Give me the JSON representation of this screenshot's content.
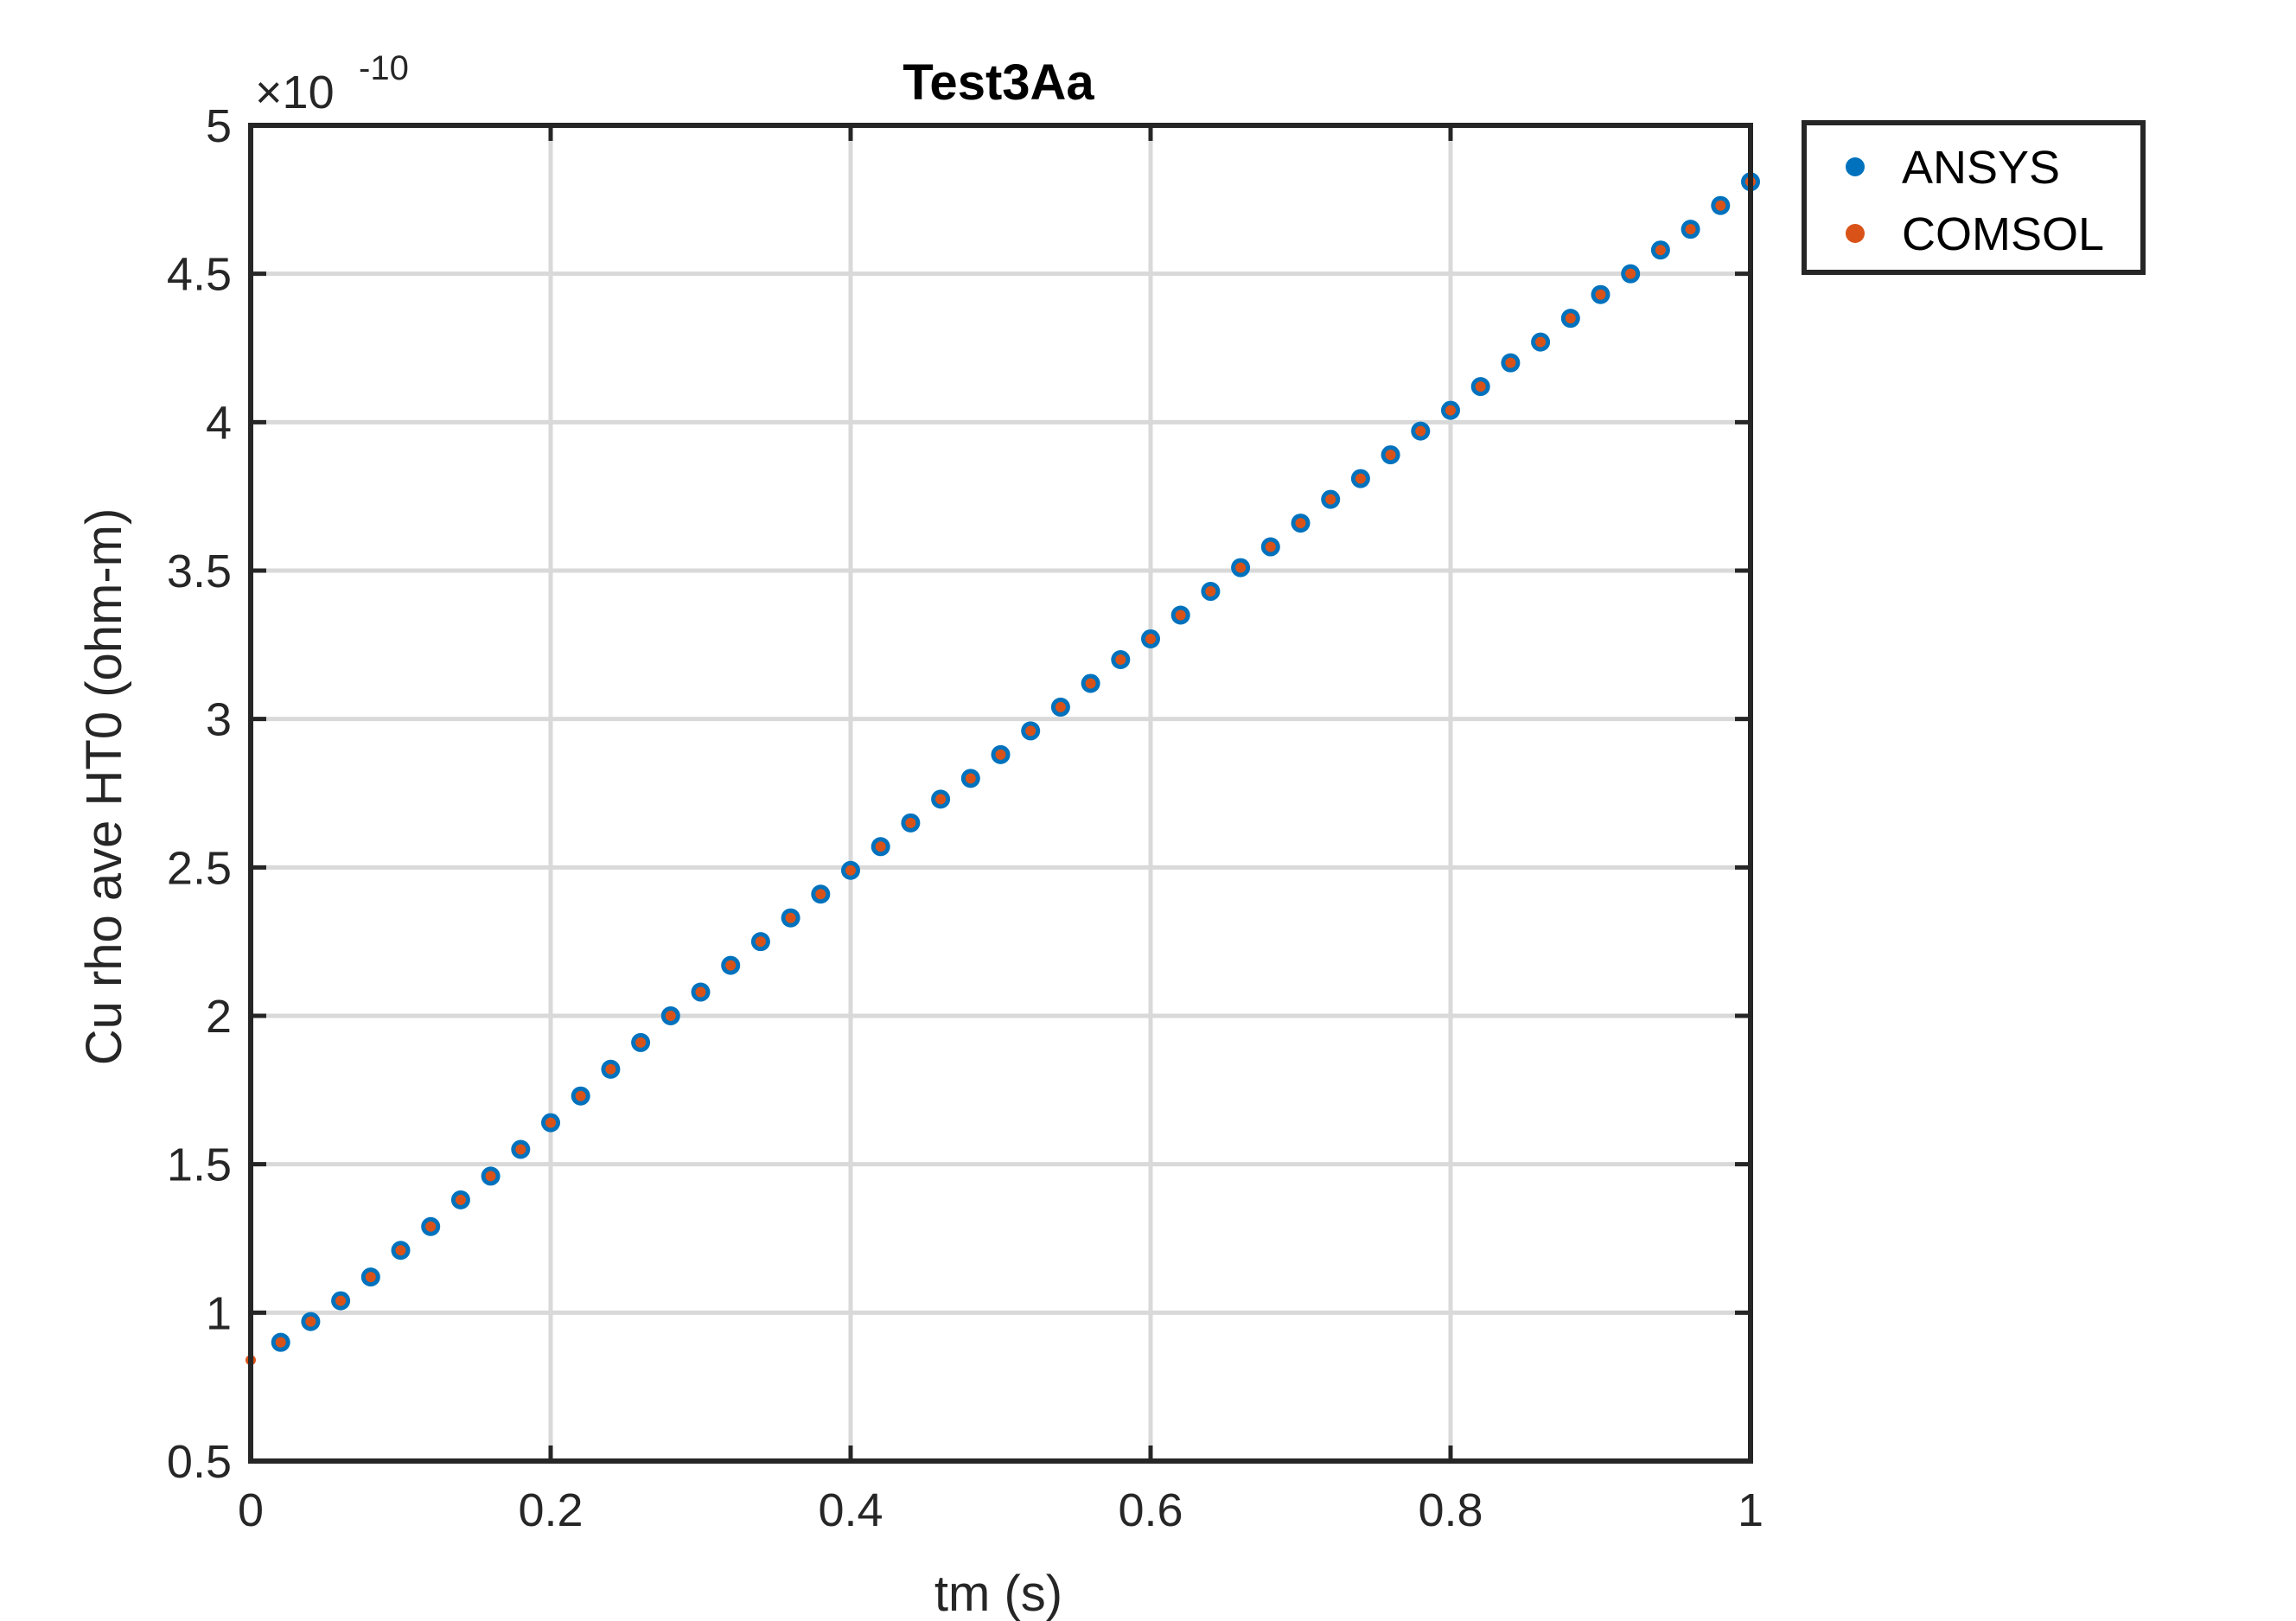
{
  "chart_data": {
    "type": "scatter",
    "title": "Test3Aa",
    "xlabel": "tm (s)",
    "ylabel": "Cu rho ave HT0 (ohm-m)",
    "y_exponent_base": "×10",
    "y_exponent_power": "-10",
    "xlim": [
      0,
      1
    ],
    "ylim": [
      0.5,
      5
    ],
    "xticks": [
      0,
      0.2,
      0.4,
      0.6,
      0.8,
      1
    ],
    "xtick_labels": [
      "0",
      "0.2",
      "0.4",
      "0.6",
      "0.8",
      "1"
    ],
    "yticks": [
      0.5,
      1,
      1.5,
      2,
      2.5,
      3,
      3.5,
      4,
      4.5,
      5
    ],
    "ytick_labels": [
      "0.5",
      "1",
      "1.5",
      "2",
      "2.5",
      "3",
      "3.5",
      "4",
      "4.5",
      "5"
    ],
    "grid": true,
    "legend_position": "outside-top-right",
    "series": [
      {
        "name": "ANSYS",
        "color": "#0072BD",
        "x": [
          0.02,
          0.04,
          0.06,
          0.08,
          0.1,
          0.12,
          0.14,
          0.16,
          0.18,
          0.2,
          0.22,
          0.24,
          0.26,
          0.28,
          0.3,
          0.32,
          0.34,
          0.36,
          0.38,
          0.4,
          0.42,
          0.44,
          0.46,
          0.48,
          0.5,
          0.52,
          0.54,
          0.56,
          0.58,
          0.6,
          0.62,
          0.64,
          0.66,
          0.68,
          0.7,
          0.72,
          0.74,
          0.76,
          0.78,
          0.8,
          0.82,
          0.84,
          0.86,
          0.88,
          0.9,
          0.92,
          0.94,
          0.96,
          0.98,
          1.0
        ],
        "y": [
          0.9,
          0.97,
          1.04,
          1.12,
          1.21,
          1.29,
          1.38,
          1.46,
          1.55,
          1.64,
          1.73,
          1.82,
          1.91,
          2.0,
          2.08,
          2.17,
          2.25,
          2.33,
          2.41,
          2.49,
          2.57,
          2.65,
          2.73,
          2.8,
          2.88,
          2.96,
          3.04,
          3.12,
          3.2,
          3.27,
          3.35,
          3.43,
          3.51,
          3.58,
          3.66,
          3.74,
          3.81,
          3.89,
          3.97,
          4.04,
          4.12,
          4.2,
          4.27,
          4.35,
          4.43,
          4.5,
          4.58,
          4.65,
          4.73,
          4.81
        ]
      },
      {
        "name": "COMSOL",
        "color": "#D95319",
        "x": [
          0.0,
          0.02,
          0.04,
          0.06,
          0.08,
          0.1,
          0.12,
          0.14,
          0.16,
          0.18,
          0.2,
          0.22,
          0.24,
          0.26,
          0.28,
          0.3,
          0.32,
          0.34,
          0.36,
          0.38,
          0.4,
          0.42,
          0.44,
          0.46,
          0.48,
          0.5,
          0.52,
          0.54,
          0.56,
          0.58,
          0.6,
          0.62,
          0.64,
          0.66,
          0.68,
          0.7,
          0.72,
          0.74,
          0.76,
          0.78,
          0.8,
          0.82,
          0.84,
          0.86,
          0.88,
          0.9,
          0.92,
          0.94,
          0.96,
          0.98,
          1.0
        ],
        "y": [
          0.84,
          0.9,
          0.97,
          1.04,
          1.12,
          1.21,
          1.29,
          1.38,
          1.46,
          1.55,
          1.64,
          1.73,
          1.82,
          1.91,
          2.0,
          2.08,
          2.17,
          2.25,
          2.33,
          2.41,
          2.49,
          2.57,
          2.65,
          2.73,
          2.8,
          2.88,
          2.96,
          3.04,
          3.12,
          3.2,
          3.27,
          3.35,
          3.43,
          3.51,
          3.58,
          3.66,
          3.74,
          3.81,
          3.89,
          3.97,
          4.04,
          4.12,
          4.2,
          4.27,
          4.35,
          4.43,
          4.5,
          4.58,
          4.65,
          4.73,
          4.81
        ]
      }
    ]
  }
}
